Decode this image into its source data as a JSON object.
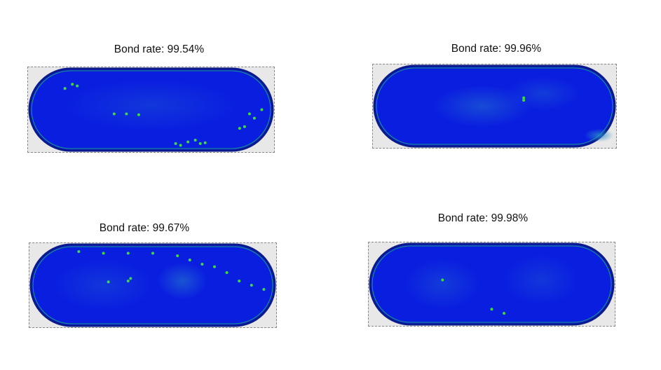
{
  "panels": [
    {
      "label": "Bond rate: 99.54%",
      "bond_rate_percent": 99.54
    },
    {
      "label": "Bond rate: 99.96%",
      "bond_rate_percent": 99.96
    },
    {
      "label": "Bond rate: 99.67%",
      "bond_rate_percent": 99.67
    },
    {
      "label": "Bond rate: 99.98%",
      "bond_rate_percent": 99.98
    }
  ],
  "colors": {
    "bonded": "#0a1ee0",
    "edge": "#0b1a8a",
    "defect": "#3ddc3a",
    "background": "#e8e8e8"
  }
}
